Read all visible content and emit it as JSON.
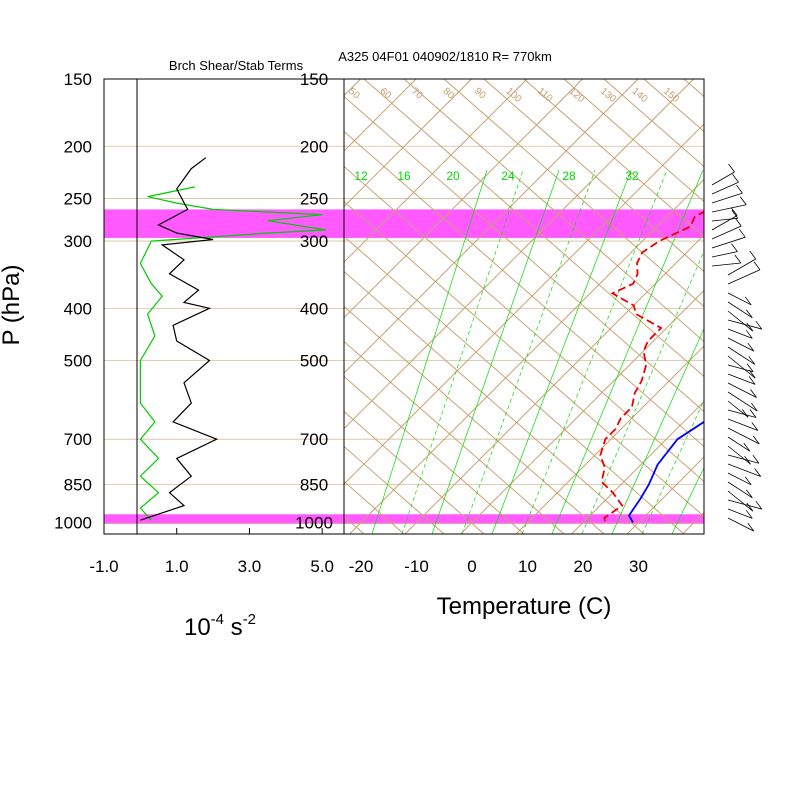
{
  "header": {
    "left_title": "Brch Shear/Stab Terms",
    "right_title": "A325 04F01 040902/1810 R= 770km"
  },
  "axes": {
    "pressure_label": "P (hPa)",
    "left_xlabel_base": "10",
    "left_xlabel_exp1": "-4",
    "left_xlabel_unit": " s",
    "left_xlabel_exp2": "-2",
    "right_xlabel": "Temperature (C)"
  },
  "colors": {
    "highlight": "#ff00ff",
    "dry_adiabat": "#c8a070",
    "mixing_ratio": "#00dd00",
    "temperature": "#0000ff",
    "dewpoint": "#ee0000",
    "stability": "#00cc00",
    "shear": "#000000"
  },
  "chart_data": [
    {
      "type": "line",
      "title": "Brch Shear/Stab Terms",
      "xlabel": "10^-4 s^-2",
      "ylabel": "P (hPa)",
      "xlim": [
        -1.0,
        5.6
      ],
      "ylim_hPa": [
        1050,
        150
      ],
      "y_scale": "log",
      "x_ticks": [
        "-1.0",
        "1.0",
        "3.0",
        "5.0"
      ],
      "x_tick_values": [
        -1,
        1,
        3,
        5
      ],
      "y_ticks": [
        "150",
        "200",
        "250",
        "300",
        "400",
        "500",
        "700",
        "850",
        "1000"
      ],
      "y_tick_values": [
        150,
        200,
        250,
        300,
        400,
        500,
        700,
        850,
        1000
      ],
      "highlight_bands_hPa": [
        [
          262,
          296
        ],
        [
          965,
          1005
        ]
      ],
      "series": [
        {
          "role": "shear",
          "points": [
            [
              1.8,
              210
            ],
            [
              1.4,
              220
            ],
            [
              1.0,
              240
            ],
            [
              1.3,
              262
            ],
            [
              0.5,
              280
            ],
            [
              1.0,
              290
            ],
            [
              2.0,
              298
            ],
            [
              0.6,
              305
            ],
            [
              1.2,
              325
            ],
            [
              0.8,
              345
            ],
            [
              1.6,
              370
            ],
            [
              1.2,
              390
            ],
            [
              1.9,
              400
            ],
            [
              0.9,
              430
            ],
            [
              1.0,
              460
            ],
            [
              1.9,
              500
            ],
            [
              1.2,
              550
            ],
            [
              1.4,
              600
            ],
            [
              0.9,
              650
            ],
            [
              2.1,
              700
            ],
            [
              1.0,
              760
            ],
            [
              1.4,
              820
            ],
            [
              0.8,
              880
            ],
            [
              1.2,
              930
            ],
            [
              0.0,
              990
            ]
          ]
        },
        {
          "role": "stability",
          "points": [
            [
              1.5,
              238
            ],
            [
              0.2,
              248
            ],
            [
              1.0,
              255
            ],
            [
              2.0,
              262
            ],
            [
              5.0,
              268
            ],
            [
              3.5,
              275
            ],
            [
              5.1,
              286
            ],
            [
              3.5,
              290
            ],
            [
              0.3,
              300
            ],
            [
              0.0,
              330
            ],
            [
              0.3,
              360
            ],
            [
              0.6,
              380
            ],
            [
              0.2,
              410
            ],
            [
              0.4,
              450
            ],
            [
              0.0,
              500
            ],
            [
              0.0,
              600
            ],
            [
              0.4,
              650
            ],
            [
              0.0,
              700
            ],
            [
              0.5,
              760
            ],
            [
              0.0,
              820
            ],
            [
              0.5,
              880
            ],
            [
              0.0,
              940
            ],
            [
              0.3,
              990
            ]
          ]
        }
      ]
    },
    {
      "type": "line",
      "subtype": "skew-T",
      "title": "A325 04F01 040902/1810 R= 770km",
      "xlabel": "Temperature (C)",
      "xlim": [
        -24,
        40
      ],
      "ylim_hPa": [
        1050,
        150
      ],
      "x_ticks": [
        "-20",
        "-10",
        "0",
        "10",
        "20",
        "30"
      ],
      "x_tick_values": [
        -20,
        -10,
        0,
        10,
        20,
        30
      ],
      "y_ticks": [
        "150",
        "200",
        "250",
        "300",
        "400",
        "500",
        "700",
        "850",
        "1000"
      ],
      "y_tick_values": [
        150,
        200,
        250,
        300,
        400,
        500,
        700,
        850,
        1000
      ],
      "mixing_ratio_labels": [
        "12",
        "16",
        "20",
        "24",
        "28",
        "32"
      ],
      "dry_adiabat_labels": [
        "50",
        "60",
        "70",
        "80",
        "90",
        "100",
        "110",
        "120",
        "130",
        "140",
        "150"
      ],
      "series": [
        {
          "name": "Temperature",
          "points": [
            [
              1.5,
              200
            ],
            [
              3.5,
              230
            ],
            [
              6,
              265
            ],
            [
              8,
              290
            ],
            [
              10,
              330
            ],
            [
              12,
              380
            ],
            [
              15,
              430
            ],
            [
              18,
              470
            ],
            [
              20,
              520
            ],
            [
              22,
              580
            ],
            [
              24,
              640
            ],
            [
              22,
              700
            ],
            [
              23,
              780
            ],
            [
              25,
              850
            ],
            [
              26,
              900
            ],
            [
              27,
              970
            ],
            [
              29,
              1000
            ]
          ]
        },
        {
          "name": "Dewpoint",
          "points": [
            [
              -14,
              215
            ],
            [
              -13,
              225
            ],
            [
              -12,
              238
            ],
            [
              -14,
              250
            ],
            [
              -13,
              258
            ],
            [
              -15,
              270
            ],
            [
              -14,
              282
            ],
            [
              -17,
              300
            ],
            [
              -18,
              315
            ],
            [
              -17,
              330
            ],
            [
              -15,
              345
            ],
            [
              -14,
              360
            ],
            [
              -16,
              375
            ],
            [
              -13,
              385
            ],
            [
              -10,
              395
            ],
            [
              -8,
              410
            ],
            [
              -1,
              435
            ],
            [
              -1,
              460
            ],
            [
              0,
              480
            ],
            [
              3,
              510
            ],
            [
              5,
              545
            ],
            [
              6,
              575
            ],
            [
              8,
              610
            ],
            [
              8,
              640
            ],
            [
              9,
              670
            ],
            [
              9,
              700
            ],
            [
              11,
              750
            ],
            [
              14,
              790
            ],
            [
              16,
              840
            ],
            [
              20,
              880
            ],
            [
              24,
              930
            ],
            [
              23,
              980
            ],
            [
              24,
              1000
            ]
          ]
        }
      ]
    }
  ]
}
